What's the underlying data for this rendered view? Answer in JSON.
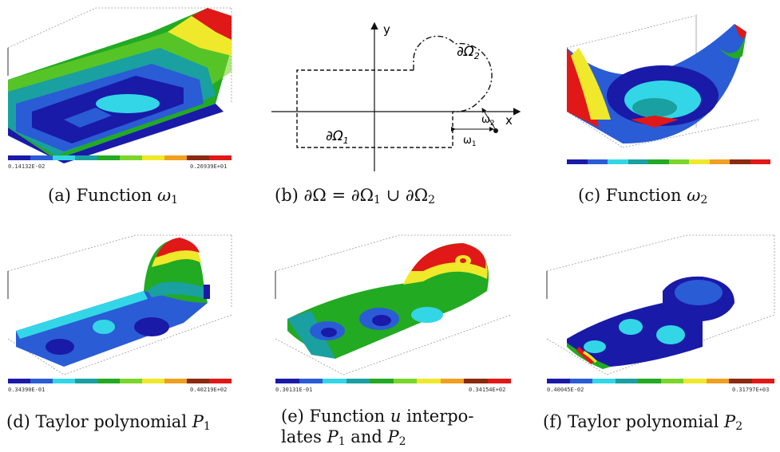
{
  "figure": {
    "panels": [
      {
        "id": "a",
        "caption_prefix": "(a) Function ",
        "caption_symbol": "ω",
        "caption_sub": "1",
        "colorbar_min": "0.14132E-02",
        "colorbar_max": "0.26939E+01"
      },
      {
        "id": "b",
        "caption_prefix": "(b) ∂Ω = ∂Ω",
        "caption_sub": "1",
        "caption_mid": " ∪ ∂Ω",
        "caption_sub2": "2",
        "labels": {
          "y_axis": "y",
          "x_axis": "x",
          "boundary_1": "∂Ω",
          "boundary_1_sub": "1",
          "boundary_2": "∂Ω",
          "boundary_2_sub": "2",
          "omega_1": "ω",
          "omega_1_sub": "1",
          "omega_2": "ω",
          "omega_2_sub": "2"
        }
      },
      {
        "id": "c",
        "caption_prefix": "(c) Function ",
        "caption_symbol": "ω",
        "caption_sub": "2",
        "colorbar_min": "",
        "colorbar_max": ""
      },
      {
        "id": "d",
        "caption_prefix": "(d) Taylor polynomial ",
        "caption_symbol": "P",
        "caption_sub": "1",
        "colorbar_min": "0.34390E-01",
        "colorbar_max": "0.40219E+02"
      },
      {
        "id": "e",
        "caption_line1": "(e) Function ",
        "caption_symbol": "u",
        "caption_line1_end": " interpo-",
        "caption_line2_prefix": "lates ",
        "caption_p1": "P",
        "caption_p1_sub": "1",
        "caption_and": " and ",
        "caption_p2": "P",
        "caption_p2_sub": "2",
        "colorbar_min": "0.30131E-01",
        "colorbar_max": "0.34154E+02"
      },
      {
        "id": "f",
        "caption_prefix": "(f) Taylor polynomial ",
        "caption_symbol": "P",
        "caption_sub": "2",
        "colorbar_min": "0.40045E-02",
        "colorbar_max": "0.31797E+03"
      }
    ],
    "colorbar_colors": [
      "#1a1aa8",
      "#2a5cd6",
      "#33d6e6",
      "#1aa0a0",
      "#22aa22",
      "#7ad62a",
      "#f0e82a",
      "#f0a020",
      "#8a2a10",
      "#e01818"
    ]
  }
}
